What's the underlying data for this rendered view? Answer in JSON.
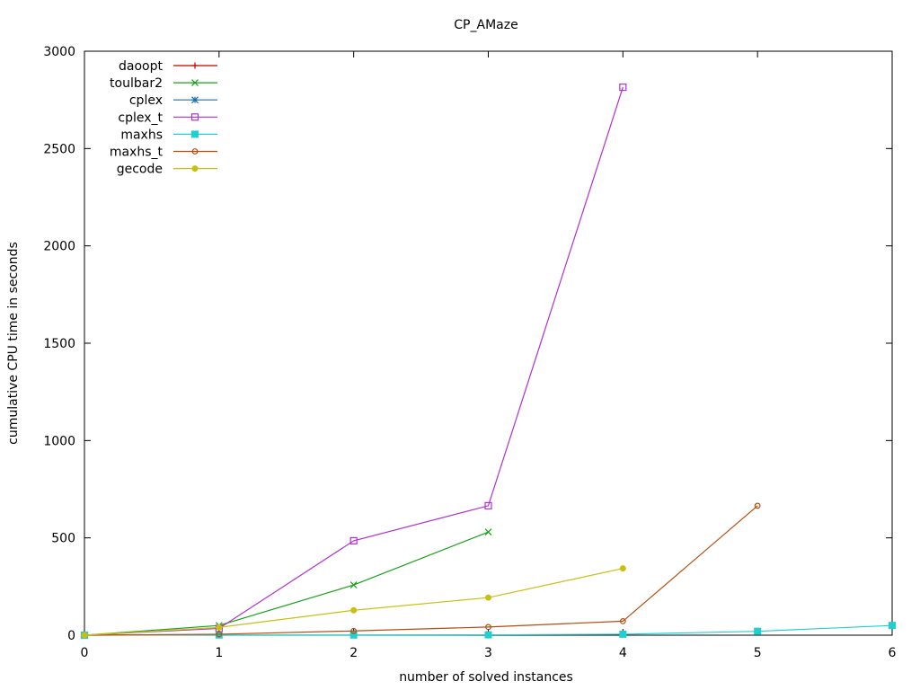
{
  "chart_data": {
    "type": "line",
    "title": "CP_AMaze",
    "xlabel": "number of solved instances",
    "ylabel": "cumulative CPU time in seconds",
    "xlim": [
      0,
      6
    ],
    "ylim": [
      0,
      3000
    ],
    "xticks": [
      0,
      1,
      2,
      3,
      4,
      5,
      6
    ],
    "yticks": [
      0,
      500,
      1000,
      1500,
      2000,
      2500,
      3000
    ],
    "grid": false,
    "legend_position": "top-left",
    "series": [
      {
        "name": "daoopt",
        "color": "#c00000",
        "marker": "plus",
        "x": [
          0,
          1
        ],
        "y": [
          0,
          2
        ]
      },
      {
        "name": "toulbar2",
        "color": "#1aa01a",
        "marker": "cross",
        "x": [
          0,
          1,
          2,
          3
        ],
        "y": [
          0,
          50,
          258,
          530
        ]
      },
      {
        "name": "cplex",
        "color": "#1a6fb0",
        "marker": "star",
        "x": [
          0
        ],
        "y": [
          0
        ]
      },
      {
        "name": "cplex_t",
        "color": "#b030d0",
        "marker": "open-square",
        "x": [
          0,
          1,
          2,
          3,
          4
        ],
        "y": [
          0,
          35,
          485,
          665,
          2815
        ]
      },
      {
        "name": "maxhs",
        "color": "#20d0d0",
        "marker": "filled-square",
        "x": [
          0,
          1,
          2,
          3,
          4,
          5,
          6
        ],
        "y": [
          0,
          1,
          1,
          2,
          5,
          20,
          50
        ]
      },
      {
        "name": "maxhs_t",
        "color": "#b84a10",
        "marker": "open-circle",
        "x": [
          0,
          1,
          2,
          3,
          4,
          5
        ],
        "y": [
          0,
          5,
          22,
          42,
          72,
          665
        ]
      },
      {
        "name": "gecode",
        "color": "#c8c010",
        "marker": "filled-circle",
        "x": [
          0,
          1,
          2,
          3,
          4
        ],
        "y": [
          0,
          40,
          128,
          193,
          343
        ]
      }
    ]
  }
}
